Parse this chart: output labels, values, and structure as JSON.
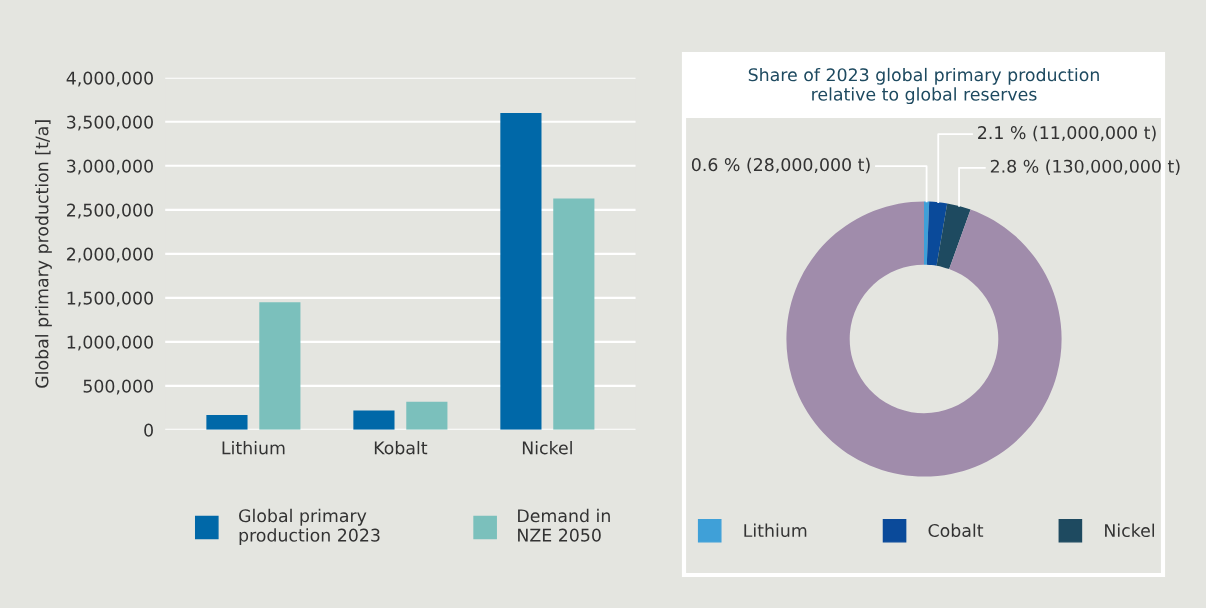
{
  "chart_data": [
    {
      "type": "bar",
      "ylabel": "Global primary production [t/a]",
      "categories": [
        "Lithium",
        "Kobalt",
        "Nickel"
      ],
      "series": [
        {
          "name": "Global primary\nproduction 2023",
          "color": "#0068a8",
          "values": [
            170000,
            220000,
            3600000
          ]
        },
        {
          "name": "Demand in\nNZE 2050",
          "color": "#7bc0bc",
          "values": [
            1450000,
            320000,
            2630000
          ]
        }
      ],
      "ylim": [
        0,
        4000000
      ],
      "yticks": [
        {
          "value": 0,
          "label": "0"
        },
        {
          "value": 500000,
          "label": "500,000"
        },
        {
          "value": 1000000,
          "label": "1,000,000"
        },
        {
          "value": 1500000,
          "label": "1,500,000"
        },
        {
          "value": 2000000,
          "label": "2,000,000"
        },
        {
          "value": 2500000,
          "label": "2,500,000"
        },
        {
          "value": 3000000,
          "label": "3,000,000"
        },
        {
          "value": 3500000,
          "label": "3,500,000"
        },
        {
          "value": 4000000,
          "label": "4,000,000"
        }
      ],
      "grid": "y",
      "legend": "bottom"
    },
    {
      "type": "donut",
      "title": "Share of 2023 global primary production\nrelative to global reserves",
      "categories": [
        "Lithium",
        "Cobalt",
        "Nickel",
        null
      ],
      "values": [
        0.6,
        2.1,
        2.8,
        94.5
      ],
      "colors": [
        "#3fa0d8",
        "#0a4a9a",
        "#1e4a60",
        "#a08cab"
      ],
      "value_labels": [
        "0.6 % (28,000,000 t)",
        "2.1 % (11,000,000 t)",
        "2.8 % (130,000,000 t)",
        null
      ],
      "legend": "bottom"
    }
  ]
}
